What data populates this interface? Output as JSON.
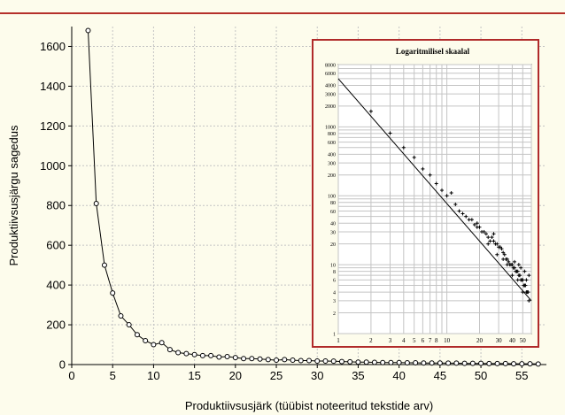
{
  "colors": {
    "background": "#fdfcec",
    "top_rule": "#b5302a",
    "inset_border": "#b02a2a",
    "grid": "#c4c4c4",
    "line": "#000000"
  },
  "chart_data": [
    {
      "type": "line",
      "title": "",
      "xlabel": "Produktiivsusjärk (tüübist noteeritud tekstide arv)",
      "ylabel": "Produktiivsusjärgu sagedus",
      "xlim": [
        0,
        58
      ],
      "ylim": [
        0,
        1700
      ],
      "x_ticks": [
        0,
        5,
        10,
        15,
        20,
        25,
        30,
        35,
        40,
        45,
        50,
        55
      ],
      "y_ticks": [
        0,
        200,
        400,
        600,
        800,
        1000,
        1200,
        1400,
        1600
      ],
      "grid": true,
      "marker": "open-circle",
      "x": [
        2,
        3,
        4,
        5,
        6,
        7,
        8,
        9,
        10,
        11,
        12,
        13,
        14,
        15,
        16,
        17,
        18,
        19,
        20,
        21,
        22,
        23,
        24,
        25,
        26,
        27,
        28,
        29,
        30,
        31,
        32,
        33,
        34,
        35,
        36,
        37,
        38,
        39,
        40,
        41,
        42,
        43,
        44,
        45,
        46,
        47,
        48,
        49,
        50,
        51,
        52,
        53,
        54,
        55,
        56,
        57
      ],
      "y": [
        1680,
        810,
        500,
        360,
        245,
        200,
        150,
        120,
        100,
        110,
        75,
        60,
        55,
        50,
        45,
        45,
        38,
        40,
        35,
        30,
        30,
        28,
        25,
        22,
        25,
        22,
        20,
        20,
        18,
        18,
        17,
        15,
        14,
        12,
        12,
        11,
        10,
        10,
        10,
        9,
        9,
        8,
        8,
        8,
        7,
        7,
        6,
        6,
        6,
        5,
        5,
        5,
        4,
        4,
        4,
        3
      ]
    },
    {
      "type": "scatter",
      "title": "Logaritmilisel skaalal",
      "log_x": true,
      "log_y": true,
      "xlim": [
        1,
        60
      ],
      "ylim": [
        1,
        8000
      ],
      "x_tick_labels": [
        "1",
        "2",
        "3",
        "4",
        "5",
        "6",
        "7",
        "8",
        "10",
        "20",
        "30",
        "40",
        "50"
      ],
      "x_tick_values": [
        1,
        2,
        3,
        4,
        5,
        6,
        7,
        8,
        10,
        20,
        30,
        40,
        50
      ],
      "y_tick_labels": [
        "1",
        "2",
        "3",
        "4",
        "6",
        "8",
        "10",
        "20",
        "30",
        "40",
        "60",
        "80",
        "100",
        "200",
        "300",
        "400",
        "600",
        "800",
        "1000",
        "2000",
        "3000",
        "4000",
        "6000",
        "8000"
      ],
      "y_tick_values": [
        1,
        2,
        3,
        4,
        6,
        8,
        10,
        20,
        30,
        40,
        60,
        80,
        100,
        200,
        300,
        400,
        600,
        800,
        1000,
        2000,
        3000,
        4000,
        6000,
        8000
      ],
      "fit_line": {
        "from": [
          1,
          5000
        ],
        "to": [
          60,
          3
        ]
      },
      "points": [
        [
          2,
          1680
        ],
        [
          3,
          810
        ],
        [
          4,
          500
        ],
        [
          5,
          360
        ],
        [
          6,
          245
        ],
        [
          7,
          200
        ],
        [
          8,
          150
        ],
        [
          9,
          120
        ],
        [
          10,
          100
        ],
        [
          11,
          110
        ],
        [
          12,
          75
        ],
        [
          13,
          60
        ],
        [
          14,
          55
        ],
        [
          15,
          50
        ],
        [
          16,
          45
        ],
        [
          17,
          45
        ],
        [
          18,
          38
        ],
        [
          19,
          40
        ],
        [
          20,
          35
        ],
        [
          21,
          30
        ],
        [
          22,
          30
        ],
        [
          23,
          28
        ],
        [
          24,
          25
        ],
        [
          25,
          22
        ],
        [
          26,
          25
        ],
        [
          27,
          22
        ],
        [
          28,
          20
        ],
        [
          29,
          20
        ],
        [
          30,
          18
        ],
        [
          31,
          18
        ],
        [
          32,
          17
        ],
        [
          33,
          15
        ],
        [
          34,
          14
        ],
        [
          35,
          12
        ],
        [
          36,
          12
        ],
        [
          37,
          11
        ],
        [
          38,
          10
        ],
        [
          39,
          10
        ],
        [
          40,
          10
        ],
        [
          41,
          9
        ],
        [
          42,
          9
        ],
        [
          43,
          8
        ],
        [
          44,
          8
        ],
        [
          45,
          8
        ],
        [
          46,
          7
        ],
        [
          47,
          7
        ],
        [
          48,
          6
        ],
        [
          49,
          6
        ],
        [
          50,
          6
        ],
        [
          51,
          5
        ],
        [
          52,
          5
        ],
        [
          53,
          5
        ],
        [
          54,
          4
        ],
        [
          55,
          4
        ],
        [
          56,
          4
        ],
        [
          57,
          3
        ],
        [
          19,
          35
        ],
        [
          24,
          20
        ],
        [
          29,
          14
        ],
        [
          33,
          12
        ],
        [
          36,
          10
        ],
        [
          42,
          11
        ],
        [
          45,
          6
        ],
        [
          48,
          9
        ],
        [
          52,
          8
        ],
        [
          50,
          4
        ],
        [
          54,
          6
        ],
        [
          57,
          7
        ],
        [
          46,
          10
        ],
        [
          40,
          7
        ],
        [
          27,
          28
        ]
      ]
    }
  ]
}
